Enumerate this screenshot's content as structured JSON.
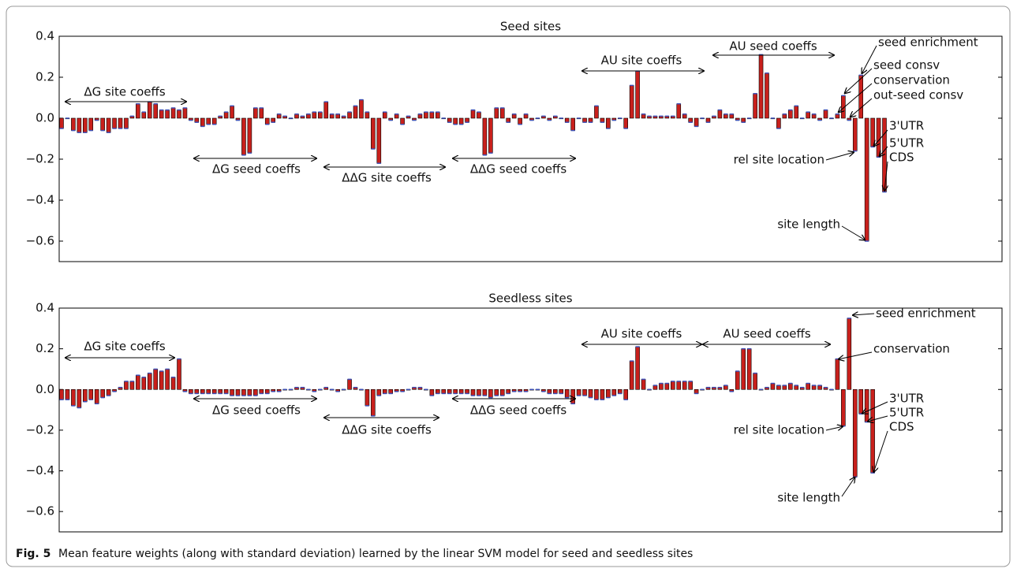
{
  "chart_data": [
    {
      "type": "bar",
      "title": "Seed sites",
      "color": "#c8201c",
      "ylim": [
        -0.7,
        0.4
      ],
      "yticks": [
        {
          "value": -0.6,
          "label": "−0.6"
        },
        {
          "value": -0.4,
          "label": "−0.4"
        },
        {
          "value": -0.2,
          "label": "−0.2"
        },
        {
          "value": 0,
          "label": "0.0"
        },
        0.2,
        0.4
      ],
      "values": [
        -0.05,
        0.0,
        -0.06,
        -0.07,
        -0.07,
        -0.06,
        -0.01,
        -0.06,
        -0.07,
        -0.05,
        -0.05,
        -0.05,
        0.01,
        0.07,
        0.03,
        0.08,
        0.07,
        0.04,
        0.04,
        0.05,
        0.04,
        0.05,
        -0.01,
        -0.02,
        -0.04,
        -0.03,
        -0.03,
        0.01,
        0.03,
        0.06,
        -0.01,
        -0.18,
        -0.17,
        0.05,
        0.05,
        -0.03,
        -0.02,
        0.02,
        0.01,
        0.0,
        0.02,
        0.01,
        0.02,
        0.03,
        0.03,
        0.08,
        0.02,
        0.02,
        0.01,
        0.03,
        0.06,
        0.09,
        0.03,
        -0.15,
        -0.22,
        0.03,
        -0.01,
        0.02,
        -0.03,
        0.01,
        -0.01,
        0.02,
        0.03,
        0.03,
        0.03,
        0.0,
        -0.02,
        -0.03,
        -0.03,
        -0.02,
        0.04,
        0.03,
        -0.18,
        -0.17,
        0.05,
        0.05,
        -0.02,
        0.02,
        -0.03,
        0.02,
        -0.01,
        0.0,
        0.01,
        -0.01,
        0.01,
        0.0,
        -0.02,
        -0.06,
        0.0,
        -0.02,
        -0.02,
        0.06,
        -0.02,
        -0.05,
        -0.01,
        0.0,
        -0.05,
        0.16,
        0.23,
        0.02,
        0.01,
        0.01,
        0.01,
        0.01,
        0.01,
        0.07,
        0.02,
        -0.02,
        -0.04,
        0.0,
        -0.02,
        0.01,
        0.04,
        0.02,
        0.02,
        -0.01,
        -0.02,
        0.0,
        0.12,
        0.31,
        0.22,
        0.0,
        -0.05,
        0.02,
        0.04,
        0.06,
        0.0,
        0.03,
        0.02,
        -0.01,
        0.04,
        0.0,
        0.02,
        0.11,
        -0.01,
        -0.16,
        0.21,
        -0.6,
        -0.14,
        -0.19,
        -0.36
      ],
      "annotations": [
        "ΔG site coeffs",
        "ΔG seed coeffs",
        "ΔΔG site coeffs",
        "ΔΔG seed coeffs",
        "AU site coeffs",
        "AU seed coeffs",
        "seed enrichment",
        "seed consv",
        "conservation",
        "out-seed consv",
        "rel site location",
        "site length",
        "3'UTR",
        "5'UTR",
        "CDS"
      ]
    },
    {
      "type": "bar",
      "title": "Seedless sites",
      "color": "#c8201c",
      "ylim": [
        -0.7,
        0.4
      ],
      "yticks": [
        {
          "value": -0.6,
          "label": "−0.6"
        },
        {
          "value": -0.4,
          "label": "−0.4"
        },
        {
          "value": -0.2,
          "label": "−0.2"
        },
        {
          "value": 0,
          "label": "0.0"
        },
        0.2,
        0.4
      ],
      "values": [
        -0.05,
        -0.05,
        -0.08,
        -0.09,
        -0.06,
        -0.05,
        -0.07,
        -0.04,
        -0.03,
        -0.01,
        0.01,
        0.04,
        0.04,
        0.07,
        0.06,
        0.08,
        0.1,
        0.09,
        0.1,
        0.06,
        0.15,
        -0.01,
        -0.02,
        -0.02,
        -0.02,
        -0.02,
        -0.02,
        -0.02,
        -0.02,
        -0.03,
        -0.03,
        -0.03,
        -0.03,
        -0.03,
        -0.02,
        -0.02,
        -0.01,
        -0.01,
        0.0,
        0.0,
        0.01,
        0.01,
        0.0,
        -0.01,
        0.0,
        0.01,
        0.0,
        -0.01,
        0.0,
        0.05,
        0.01,
        0.0,
        -0.08,
        -0.13,
        -0.03,
        -0.02,
        -0.02,
        -0.01,
        -0.01,
        0.0,
        0.01,
        0.01,
        0.0,
        -0.03,
        -0.02,
        -0.02,
        -0.02,
        -0.02,
        -0.02,
        -0.02,
        -0.03,
        -0.03,
        -0.03,
        -0.04,
        -0.03,
        -0.03,
        -0.02,
        -0.01,
        -0.01,
        -0.01,
        0.0,
        0.0,
        -0.01,
        -0.02,
        -0.02,
        -0.02,
        -0.04,
        -0.07,
        -0.03,
        -0.03,
        -0.04,
        -0.05,
        -0.05,
        -0.04,
        -0.03,
        -0.02,
        -0.05,
        0.14,
        0.21,
        0.05,
        0.0,
        0.02,
        0.03,
        0.03,
        0.04,
        0.04,
        0.04,
        0.04,
        -0.02,
        0.0,
        0.01,
        0.01,
        0.01,
        0.02,
        -0.01,
        0.09,
        0.2,
        0.2,
        0.08,
        0.0,
        0.01,
        0.03,
        0.02,
        0.02,
        0.03,
        0.02,
        0.01,
        0.03,
        0.02,
        0.02,
        0.01,
        0.0,
        0.15,
        -0.18,
        0.35,
        -0.43,
        -0.12,
        -0.16,
        -0.41
      ],
      "annotations": [
        "ΔG site coeffs",
        "ΔG seed coeffs",
        "ΔΔG site coeffs",
        "ΔΔG seed coeffs",
        "AU site coeffs",
        "AU seed coeffs",
        "seed enrichment",
        "conservation",
        "rel site location",
        "site length",
        "3'UTR",
        "5'UTR",
        "CDS"
      ]
    }
  ],
  "caption": {
    "label": "Fig. 5",
    "text": "Mean feature weights (along with standard deviation) learned by the linear SVM model for seed and seedless sites"
  }
}
